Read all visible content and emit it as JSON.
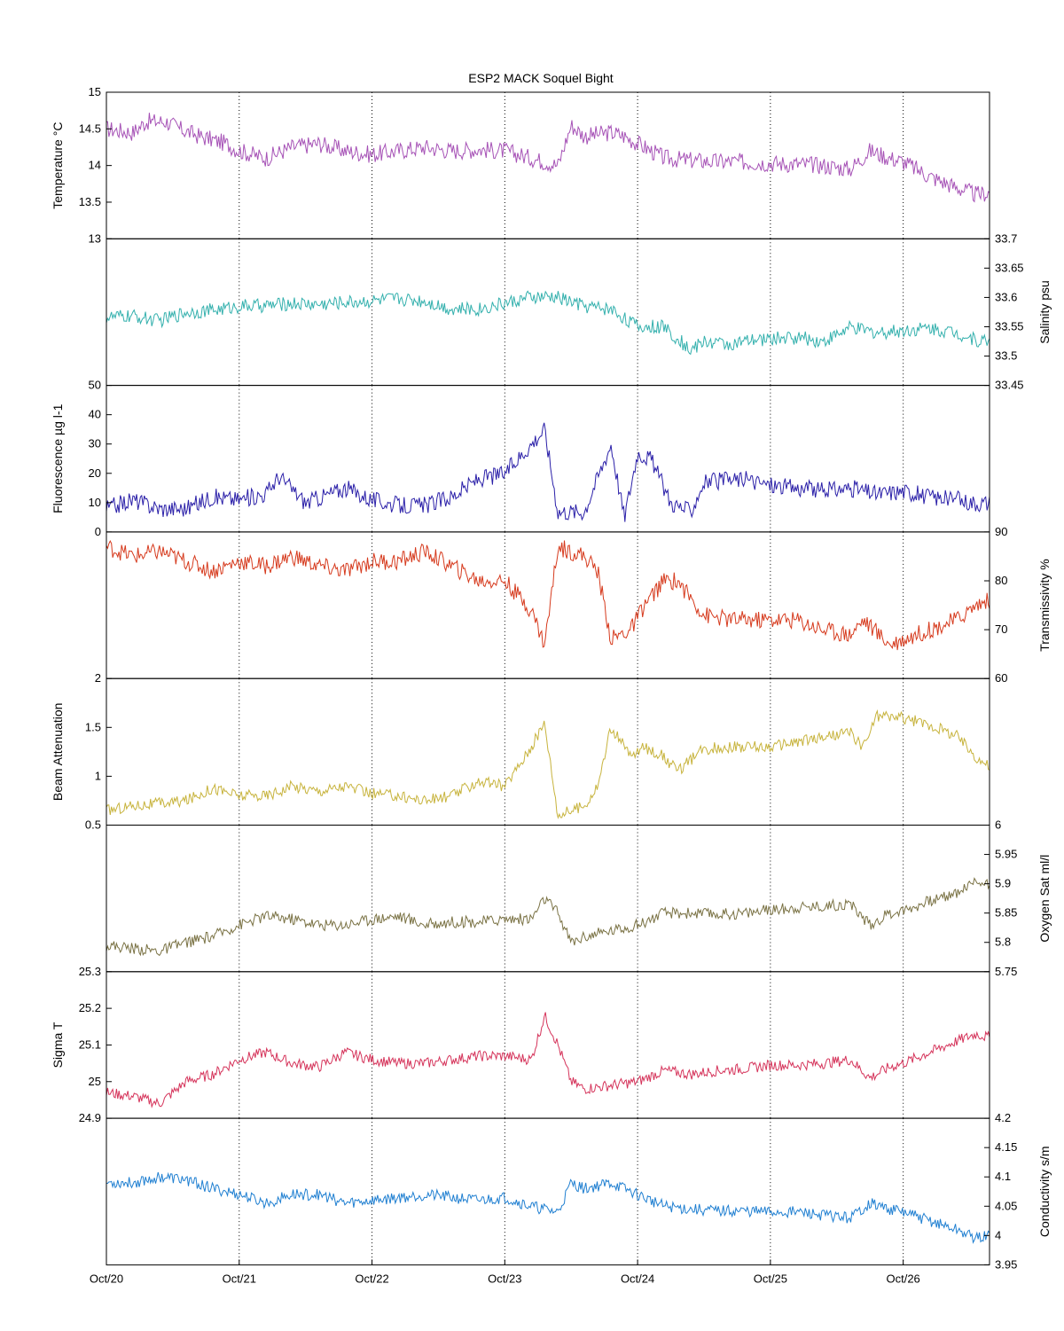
{
  "chart_data": {
    "type": "line",
    "title": "ESP2 MACK  Soquel Bight",
    "x_ticks": [
      "Oct/20",
      "Oct/21",
      "Oct/22",
      "Oct/23",
      "Oct/24",
      "Oct/25",
      "Oct/26"
    ],
    "x_range_days": [
      0,
      6.65
    ],
    "grid": "vertical dotted at each day",
    "panels": [
      {
        "name": "temperature",
        "ylabel": "Temperature °C",
        "axis_side": "left",
        "ylim": [
          13,
          15
        ],
        "ticks": [
          13,
          13.5,
          14,
          14.5,
          15
        ],
        "tick_labels": [
          "13",
          "13.5",
          "14",
          "14.5",
          "15"
        ],
        "color": "#a652b6",
        "series_x": [
          0,
          0.2,
          0.3,
          0.45,
          0.55,
          0.7,
          0.9,
          1.0,
          1.2,
          1.4,
          1.6,
          1.8,
          2.0,
          2.2,
          2.4,
          2.6,
          2.8,
          3.0,
          3.2,
          3.4,
          3.5,
          3.6,
          3.8,
          3.9,
          4.0,
          4.2,
          4.4,
          4.6,
          4.8,
          5.0,
          5.2,
          5.4,
          5.6,
          5.75,
          5.9,
          6.0,
          6.2,
          6.4,
          6.55,
          6.65
        ],
        "series_y": [
          14.5,
          14.45,
          14.6,
          14.6,
          14.5,
          14.4,
          14.3,
          14.2,
          14.1,
          14.25,
          14.3,
          14.2,
          14.15,
          14.2,
          14.25,
          14.2,
          14.22,
          14.2,
          14.1,
          14.0,
          14.55,
          14.4,
          14.45,
          14.4,
          14.3,
          14.1,
          14.07,
          14.05,
          14.05,
          14.03,
          14.02,
          14.0,
          13.95,
          14.2,
          14.1,
          14.05,
          13.85,
          13.7,
          13.6,
          13.63
        ],
        "noise": 0.12
      },
      {
        "name": "salinity",
        "ylabel": "Salinity psu",
        "axis_side": "right",
        "ylim": [
          33.45,
          33.7
        ],
        "ticks": [
          33.45,
          33.5,
          33.55,
          33.6,
          33.65,
          33.7
        ],
        "tick_labels": [
          "33.45",
          "33.5",
          "33.55",
          "33.6",
          "33.65",
          "33.7"
        ],
        "color": "#33b0ad",
        "series_x": [
          0,
          0.2,
          0.4,
          0.6,
          0.8,
          1.0,
          1.2,
          1.4,
          1.6,
          1.8,
          2.0,
          2.2,
          2.4,
          2.6,
          2.8,
          3.0,
          3.2,
          3.4,
          3.6,
          3.8,
          4.0,
          4.2,
          4.4,
          4.5,
          4.7,
          5.0,
          5.2,
          5.4,
          5.6,
          5.8,
          6.0,
          6.2,
          6.4,
          6.55,
          6.65
        ],
        "series_y": [
          33.566,
          33.568,
          33.56,
          33.575,
          33.578,
          33.585,
          33.586,
          33.59,
          33.588,
          33.592,
          33.594,
          33.598,
          33.594,
          33.58,
          33.58,
          33.59,
          33.6,
          33.6,
          33.585,
          33.58,
          33.55,
          33.55,
          33.51,
          33.525,
          33.52,
          33.53,
          33.532,
          33.525,
          33.548,
          33.54,
          33.544,
          33.548,
          33.54,
          33.527,
          33.526
        ],
        "noise": 0.012
      },
      {
        "name": "fluorescence",
        "ylabel": "Fluorescence µg l-1",
        "axis_side": "left",
        "ylim": [
          0,
          50
        ],
        "ticks": [
          0,
          10,
          20,
          30,
          40,
          50
        ],
        "tick_labels": [
          "0",
          "10",
          "20",
          "30",
          "40",
          "50"
        ],
        "color": "#2a1fa8",
        "series_x": [
          0,
          0.2,
          0.4,
          0.6,
          0.8,
          1.0,
          1.2,
          1.3,
          1.5,
          1.8,
          2.0,
          2.2,
          2.4,
          2.6,
          2.8,
          3.0,
          3.2,
          3.3,
          3.4,
          3.6,
          3.65,
          3.8,
          3.9,
          4.0,
          4.1,
          4.25,
          4.4,
          4.5,
          4.8,
          5.0,
          5.2,
          5.4,
          5.6,
          5.8,
          6.0,
          6.2,
          6.4,
          6.55,
          6.65
        ],
        "series_y": [
          8,
          11,
          8,
          8,
          12,
          11,
          13,
          19,
          10,
          15,
          11,
          9,
          9,
          12,
          18,
          20,
          30,
          35,
          7,
          7,
          13,
          30,
          5,
          27,
          25,
          10,
          7,
          17,
          18,
          16,
          15,
          14,
          15,
          13,
          14,
          12,
          11,
          10,
          10
        ],
        "noise": 3
      },
      {
        "name": "transmissivity",
        "ylabel": "Transmissivity %",
        "axis_side": "right",
        "ylim": [
          60,
          90
        ],
        "ticks": [
          60,
          70,
          80,
          90
        ],
        "tick_labels": [
          "60",
          "70",
          "80",
          "90"
        ],
        "color": "#d63a1d",
        "series_x": [
          0,
          0.2,
          0.4,
          0.6,
          0.8,
          1.0,
          1.2,
          1.4,
          1.6,
          1.8,
          2.0,
          2.2,
          2.4,
          2.6,
          2.8,
          3.0,
          3.2,
          3.3,
          3.4,
          3.6,
          3.7,
          3.8,
          3.95,
          4.05,
          4.2,
          4.3,
          4.5,
          4.7,
          5.0,
          5.2,
          5.4,
          5.6,
          5.7,
          5.9,
          6.0,
          6.2,
          6.4,
          6.55,
          6.65
        ],
        "series_y": [
          87,
          85,
          86,
          84,
          82,
          84,
          83,
          85,
          83,
          82,
          84,
          84,
          86,
          83,
          80,
          80,
          74,
          67,
          87,
          85,
          82,
          68,
          70,
          75,
          80,
          80,
          73,
          72,
          72,
          72,
          70,
          69,
          72,
          67,
          68,
          70,
          72,
          75,
          76
        ],
        "noise": 1.8
      },
      {
        "name": "beam-attenuation",
        "ylabel": "Beam Attenuation",
        "axis_side": "left",
        "ylim": [
          0.5,
          2
        ],
        "ticks": [
          0.5,
          1,
          1.5,
          2
        ],
        "tick_labels": [
          "0.5",
          "1",
          "1.5",
          "2"
        ],
        "color": "#c7b33c",
        "series_x": [
          0,
          0.2,
          0.4,
          0.6,
          0.8,
          1.0,
          1.2,
          1.4,
          1.6,
          1.8,
          2.0,
          2.2,
          2.4,
          2.6,
          2.8,
          3.0,
          3.2,
          3.3,
          3.4,
          3.6,
          3.7,
          3.8,
          3.95,
          4.05,
          4.2,
          4.3,
          4.5,
          4.7,
          5.0,
          5.2,
          5.4,
          5.6,
          5.7,
          5.8,
          6.0,
          6.2,
          6.4,
          6.55,
          6.65
        ],
        "series_y": [
          0.65,
          0.7,
          0.72,
          0.75,
          0.88,
          0.8,
          0.8,
          0.9,
          0.85,
          0.9,
          0.82,
          0.8,
          0.75,
          0.8,
          0.95,
          0.9,
          1.3,
          1.55,
          0.6,
          0.7,
          0.9,
          1.5,
          1.2,
          1.3,
          1.2,
          1.05,
          1.28,
          1.3,
          1.3,
          1.35,
          1.4,
          1.45,
          1.3,
          1.62,
          1.6,
          1.52,
          1.42,
          1.2,
          1.1
        ],
        "noise": 0.06
      },
      {
        "name": "oxygen-sat",
        "ylabel": "Oxygen Sat ml/l",
        "axis_side": "right",
        "ylim": [
          5.75,
          6
        ],
        "ticks": [
          5.75,
          5.8,
          5.85,
          5.9,
          5.95,
          6
        ],
        "tick_labels": [
          "5.75",
          "5.8",
          "5.85",
          "5.9",
          "5.95",
          "6"
        ],
        "color": "#7a7244",
        "series_x": [
          0,
          0.2,
          0.4,
          0.6,
          0.8,
          1.0,
          1.2,
          1.4,
          1.6,
          1.8,
          2.0,
          2.2,
          2.4,
          2.6,
          2.8,
          3.0,
          3.2,
          3.3,
          3.4,
          3.5,
          3.6,
          3.8,
          4.0,
          4.2,
          4.4,
          4.6,
          4.8,
          5.0,
          5.2,
          5.4,
          5.6,
          5.75,
          5.9,
          6.0,
          6.2,
          6.4,
          6.55,
          6.65
        ],
        "series_y": [
          5.795,
          5.79,
          5.785,
          5.8,
          5.81,
          5.83,
          5.845,
          5.84,
          5.83,
          5.83,
          5.84,
          5.845,
          5.83,
          5.835,
          5.835,
          5.84,
          5.84,
          5.875,
          5.85,
          5.8,
          5.81,
          5.82,
          5.83,
          5.85,
          5.85,
          5.848,
          5.85,
          5.855,
          5.86,
          5.862,
          5.866,
          5.83,
          5.85,
          5.855,
          5.87,
          5.885,
          5.905,
          5.9
        ],
        "noise": 0.01
      },
      {
        "name": "sigma-t",
        "ylabel": "Sigma T",
        "axis_side": "left",
        "ylim": [
          24.9,
          25.3
        ],
        "ticks": [
          24.9,
          25,
          25.1,
          25.2,
          25.3
        ],
        "tick_labels": [
          "24.9",
          "25",
          "25.1",
          "25.2",
          "25.3"
        ],
        "color": "#d5335a",
        "series_x": [
          0,
          0.2,
          0.4,
          0.6,
          0.8,
          1.0,
          1.2,
          1.4,
          1.6,
          1.8,
          2.0,
          2.2,
          2.4,
          2.6,
          2.8,
          3.0,
          3.2,
          3.3,
          3.4,
          3.5,
          3.6,
          3.8,
          4.0,
          4.2,
          4.4,
          4.6,
          4.8,
          5.0,
          5.2,
          5.4,
          5.6,
          5.75,
          5.9,
          6.0,
          6.2,
          6.4,
          6.55,
          6.65
        ],
        "series_y": [
          24.97,
          24.96,
          24.94,
          25.0,
          25.02,
          25.06,
          25.08,
          25.05,
          25.04,
          25.08,
          25.06,
          25.05,
          25.05,
          25.06,
          25.07,
          25.07,
          25.06,
          25.18,
          25.1,
          25.0,
          24.98,
          24.99,
          25.0,
          25.03,
          25.02,
          25.03,
          25.035,
          25.045,
          25.045,
          25.05,
          25.06,
          25.01,
          25.04,
          25.05,
          25.08,
          25.11,
          25.13,
          25.12
        ],
        "noise": 0.015
      },
      {
        "name": "conductivity",
        "ylabel": "Conductivity s/m",
        "axis_side": "right",
        "ylim": [
          3.95,
          4.2
        ],
        "ticks": [
          3.95,
          4,
          4.05,
          4.1,
          4.15,
          4.2
        ],
        "tick_labels": [
          "3.95",
          "4",
          "4.05",
          "4.1",
          "4.15",
          "4.2"
        ],
        "color": "#1f7fd1",
        "series_x": [
          0,
          0.2,
          0.4,
          0.6,
          0.8,
          1.0,
          1.2,
          1.4,
          1.6,
          1.8,
          2.0,
          2.2,
          2.4,
          2.6,
          2.8,
          3.0,
          3.2,
          3.4,
          3.5,
          3.6,
          3.8,
          4.0,
          4.2,
          4.4,
          4.6,
          4.8,
          5.0,
          5.2,
          5.4,
          5.6,
          5.75,
          5.9,
          6.0,
          6.2,
          6.4,
          6.55,
          6.65
        ],
        "series_y": [
          4.09,
          4.09,
          4.1,
          4.095,
          4.08,
          4.07,
          4.055,
          4.07,
          4.07,
          4.055,
          4.06,
          4.065,
          4.07,
          4.065,
          4.06,
          4.065,
          4.05,
          4.04,
          4.09,
          4.08,
          4.09,
          4.07,
          4.05,
          4.045,
          4.042,
          4.042,
          4.04,
          4.04,
          4.035,
          4.03,
          4.055,
          4.045,
          4.04,
          4.025,
          4.01,
          3.995,
          4.0
        ],
        "noise": 0.01
      }
    ]
  }
}
